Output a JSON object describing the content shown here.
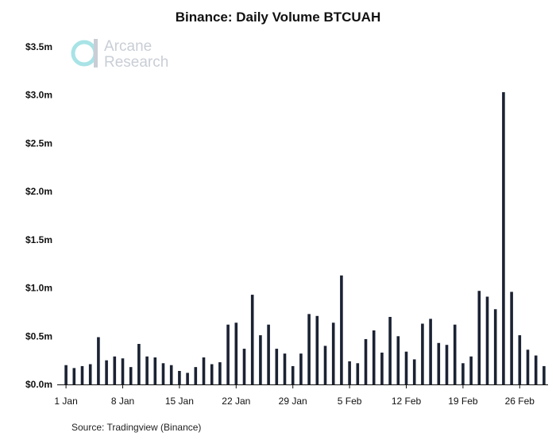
{
  "chart_data": {
    "type": "bar",
    "title": "Binance: Daily Volume BTCUAH",
    "source": "Source: Tradingview (Binance)",
    "watermark": {
      "line1": "Arcane",
      "line2": "Research"
    },
    "ylabel": "",
    "xlabel": "",
    "ylim": [
      0,
      3.5
    ],
    "y_ticks": [
      0,
      0.5,
      1.0,
      1.5,
      2.0,
      2.5,
      3.0,
      3.5
    ],
    "y_tick_labels": [
      "$0.0m",
      "$0.5m",
      "$1.0m",
      "$1.5m",
      "$2.0m",
      "$2.5m",
      "$3.0m",
      "$3.5m"
    ],
    "x_tick_labels": [
      {
        "label": "1 Jan",
        "index": 0
      },
      {
        "label": "8 Jan",
        "index": 7
      },
      {
        "label": "15 Jan",
        "index": 14
      },
      {
        "label": "22 Jan",
        "index": 21
      },
      {
        "label": "29 Jan",
        "index": 28
      },
      {
        "label": "5 Feb",
        "index": 35
      },
      {
        "label": "12 Feb",
        "index": 42
      },
      {
        "label": "19 Feb",
        "index": 49
      },
      {
        "label": "26 Feb",
        "index": 56
      }
    ],
    "categories": [
      "Jan 1",
      "Jan 2",
      "Jan 3",
      "Jan 4",
      "Jan 5",
      "Jan 6",
      "Jan 7",
      "Jan 8",
      "Jan 9",
      "Jan 10",
      "Jan 11",
      "Jan 12",
      "Jan 13",
      "Jan 14",
      "Jan 15",
      "Jan 16",
      "Jan 17",
      "Jan 18",
      "Jan 19",
      "Jan 20",
      "Jan 21",
      "Jan 22",
      "Jan 23",
      "Jan 24",
      "Jan 25",
      "Jan 26",
      "Jan 27",
      "Jan 28",
      "Jan 29",
      "Jan 30",
      "Jan 31",
      "Feb 1",
      "Feb 2",
      "Feb 3",
      "Feb 4",
      "Feb 5",
      "Feb 6",
      "Feb 7",
      "Feb 8",
      "Feb 9",
      "Feb 10",
      "Feb 11",
      "Feb 12",
      "Feb 13",
      "Feb 14",
      "Feb 15",
      "Feb 16",
      "Feb 17",
      "Feb 18",
      "Feb 19",
      "Feb 20",
      "Feb 21",
      "Feb 22",
      "Feb 23",
      "Feb 24",
      "Feb 25",
      "Feb 26",
      "Feb 27",
      "Feb 28",
      "Mar 1"
    ],
    "values": [
      0.2,
      0.17,
      0.19,
      0.21,
      0.49,
      0.25,
      0.29,
      0.27,
      0.18,
      0.42,
      0.29,
      0.28,
      0.22,
      0.2,
      0.14,
      0.12,
      0.18,
      0.28,
      0.21,
      0.23,
      0.62,
      0.64,
      0.37,
      0.93,
      0.51,
      0.62,
      0.37,
      0.32,
      0.19,
      0.32,
      0.73,
      0.71,
      0.4,
      0.64,
      1.13,
      0.24,
      0.22,
      0.47,
      0.56,
      0.33,
      0.7,
      0.5,
      0.34,
      0.26,
      0.63,
      0.68,
      0.43,
      0.41,
      0.62,
      0.22,
      0.29,
      0.97,
      0.91,
      0.78,
      3.03,
      0.96,
      0.51,
      0.36,
      0.3,
      0.19
    ],
    "colors": {
      "bar": "#1b2233",
      "axis": "#111111",
      "watermark": "#c9ced6",
      "logo_accent": "#a8e3e6"
    }
  }
}
